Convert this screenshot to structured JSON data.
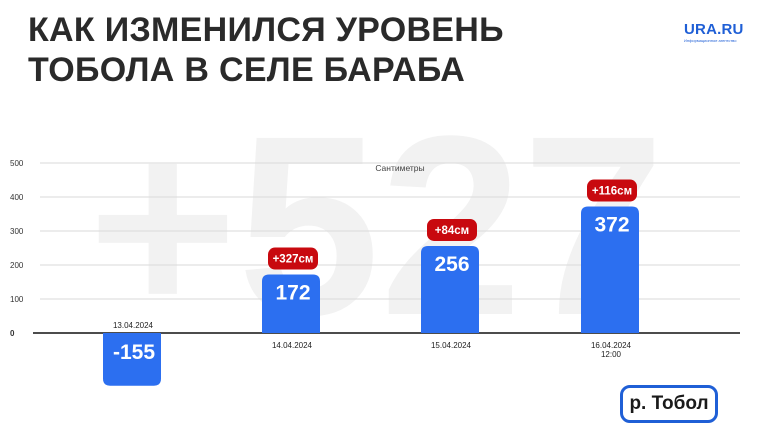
{
  "title_line1": "КАК ИЗМЕНИЛСЯ УРОВЕНЬ",
  "title_line2": "ТОБОЛА В СЕЛЕ БАРАБА",
  "logo": {
    "name": "URA.RU",
    "tagline": "Информационное агентство"
  },
  "watermark": "+527",
  "river_label": "р. Тобол",
  "colors": {
    "bar": "#2c6ff0",
    "delta_badge": "#c8090f",
    "title": "#2a2a2a",
    "grid": "#d9d9d9"
  },
  "chart_data": {
    "type": "bar",
    "ylabel": "Сантиметры",
    "ylim": [
      -175,
      500
    ],
    "yticks": [
      "0",
      "100",
      "200",
      "300",
      "400",
      "500"
    ],
    "grid": true,
    "categories": [
      "13.04.2024",
      "14.04.2024",
      "15.04.2024",
      "16.04.2024 12:00"
    ],
    "values": [
      -155,
      172,
      256,
      372
    ],
    "value_labels": [
      "-155",
      "172",
      "256",
      "372"
    ],
    "deltas": [
      "",
      "+327см",
      "+84см",
      "+116см"
    ]
  }
}
